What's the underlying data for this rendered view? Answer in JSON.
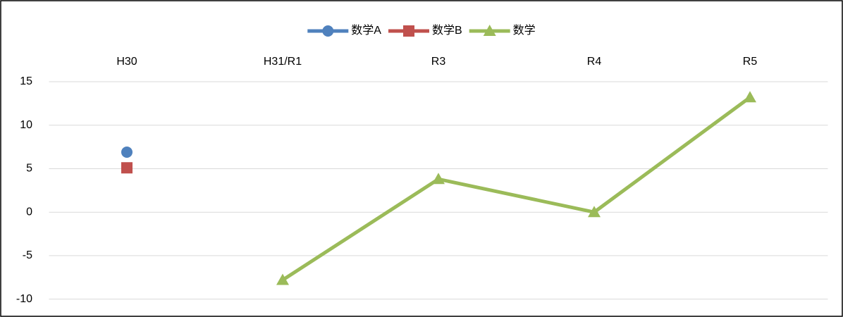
{
  "chart_data": {
    "type": "line",
    "categories": [
      "H30",
      "H31/R1",
      "R3",
      "R4",
      "R5"
    ],
    "series": [
      {
        "name": "数学A",
        "color": "#4f81bd",
        "marker": "circle",
        "values": [
          6.9,
          null,
          null,
          null,
          null
        ]
      },
      {
        "name": "数学B",
        "color": "#c0504d",
        "marker": "square",
        "values": [
          5.1,
          null,
          null,
          null,
          null
        ]
      },
      {
        "name": "数学",
        "color": "#9bbb59",
        "marker": "triangle",
        "values": [
          null,
          -7.8,
          3.8,
          0,
          13.2
        ]
      }
    ],
    "ylim": [
      -11,
      15
    ],
    "yticks": [
      -10,
      -5,
      0,
      5,
      10,
      15
    ],
    "grid": true,
    "legend": "top"
  }
}
